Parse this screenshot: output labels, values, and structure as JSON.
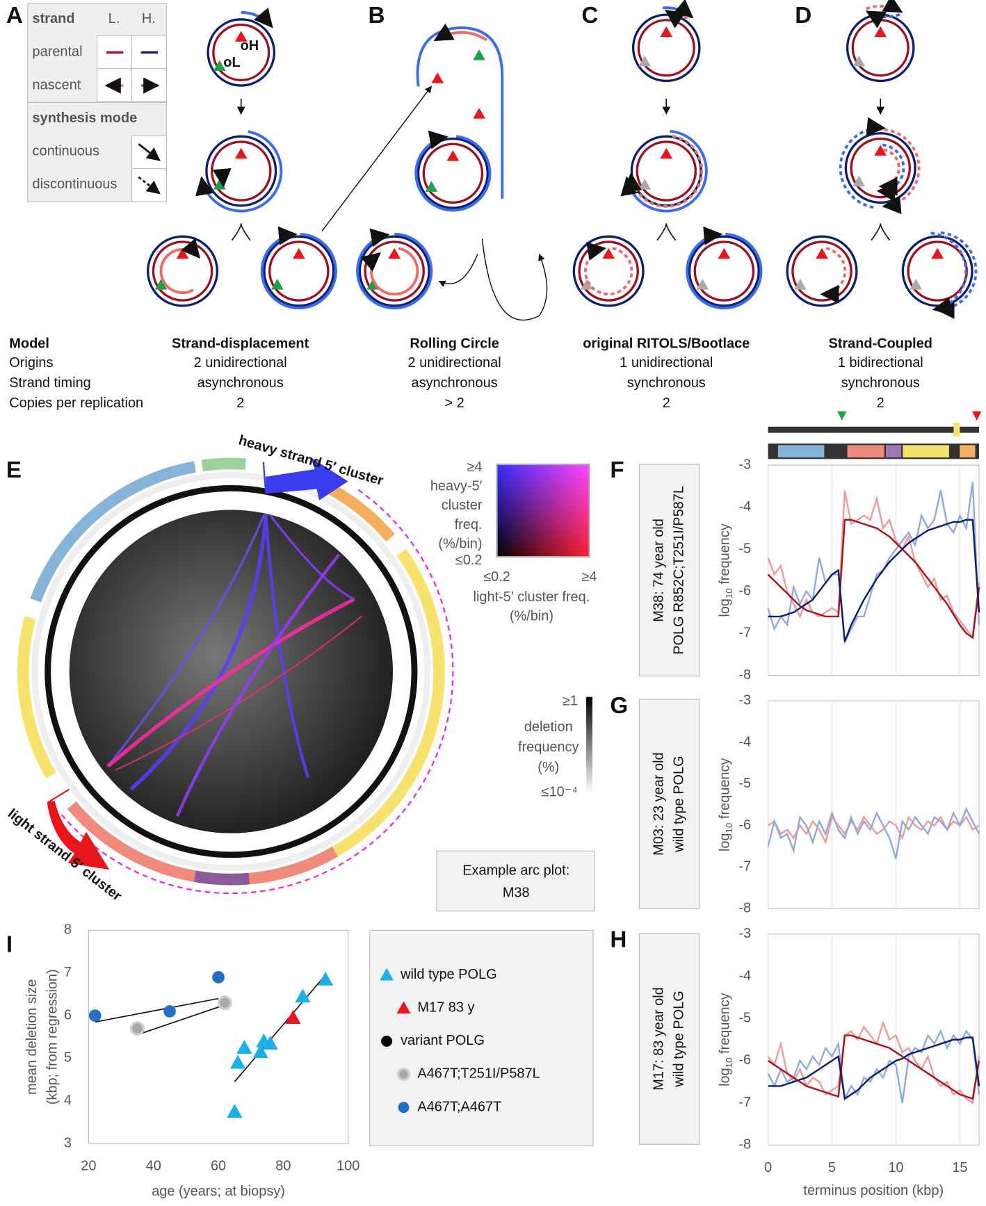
{
  "panel_labels": [
    "A",
    "B",
    "C",
    "D",
    "E",
    "F",
    "G",
    "H",
    "I"
  ],
  "legend_a": {
    "strand_header": "strand",
    "columns": [
      "L.",
      "H."
    ],
    "rows": [
      "parental",
      "nascent"
    ],
    "mode_header": "synthesis mode",
    "modes": [
      "continuous",
      "discontinuous"
    ]
  },
  "origin_labels": [
    "oH",
    "oL"
  ],
  "model_table": {
    "row_headers": [
      "Model",
      "Origins",
      "Strand timing",
      "Copies per replication"
    ],
    "models": [
      {
        "name": "Strand-displacement",
        "origins": "2 unidirectional",
        "timing": "asynchronous",
        "copies": "2"
      },
      {
        "name": "Rolling Circle",
        "origins": "2 unidirectional",
        "timing": "asynchronous",
        "copies": "> 2"
      },
      {
        "name": "original RITOLS/Bootlace",
        "origins": "1 unidirectional",
        "timing": "synchronous",
        "copies": "2"
      },
      {
        "name": "Strand-Coupled",
        "origins": "1 bidirectional",
        "timing": "synchronous",
        "copies": "2"
      }
    ]
  },
  "arc_plot": {
    "cluster_labels": [
      "heavy strand 5′ cluster",
      "light strand 5′ cluster"
    ],
    "color_key": {
      "y_max": "≥4",
      "y_label": [
        "heavy-5′",
        "cluster",
        "freq.",
        "(%/bin)"
      ],
      "y_min": "≤0.2",
      "x_min": "≤0.2",
      "x_max": "≥4",
      "x_label": [
        "light-5′ cluster freq.",
        "(%/bin)"
      ]
    },
    "deletion_key": {
      "max": "≥1",
      "label": [
        "deletion",
        "frequency",
        "(%)"
      ],
      "min": "≤10⁻⁴"
    },
    "example_note": [
      "Example arc plot:",
      "M38"
    ]
  },
  "chart_data": [
    {
      "type": "line",
      "title": [
        "M38: 74 year old",
        "POLG R852C;T251I/P587L"
      ],
      "y_label": {
        "main": "log",
        "sub": "10",
        "rest": "frequency"
      },
      "x": [
        0,
        0.5,
        1,
        1.5,
        2,
        2.5,
        3,
        3.5,
        4,
        4.5,
        5,
        5.5,
        6,
        6.5,
        7,
        7.5,
        8,
        8.5,
        9,
        9.5,
        10,
        10.5,
        11,
        11.5,
        12,
        12.5,
        13,
        13.5,
        14,
        14.5,
        15,
        15.5,
        16,
        16.5
      ],
      "xlim": [
        0,
        16.5
      ],
      "xticks": [
        0,
        5,
        10,
        15
      ],
      "show_xtick_labels": false,
      "ylim": [
        -8,
        -3
      ],
      "yticks": [
        -3,
        -4,
        -5,
        -6,
        -7,
        -8
      ],
      "series": [
        {
          "color": "#f29a9a",
          "values": [
            -5.2,
            -5.6,
            -5.4,
            -6.0,
            -6.3,
            -6.6,
            -6.2,
            -6.5,
            -6.6,
            -6.5,
            -6.4,
            -6.5,
            -3.6,
            -4.4,
            -4.3,
            -4.2,
            -4.3,
            -3.8,
            -4.5,
            -4.3,
            -4.8,
            -5.0,
            -4.7,
            -5.3,
            -5.6,
            -5.9,
            -5.7,
            -6.2,
            -6.1,
            -6.5,
            -6.7,
            -6.9,
            -7.1,
            -5.8
          ]
        },
        {
          "color": "#8fabdd",
          "values": [
            -6.4,
            -6.9,
            -6.6,
            -6.8,
            -5.9,
            -6.3,
            -6.0,
            -6.2,
            -5.2,
            -5.8,
            -5.6,
            -5.6,
            -7.2,
            -6.9,
            -6.6,
            -6.6,
            -6.1,
            -5.6,
            -5.5,
            -5.2,
            -5.0,
            -4.8,
            -4.6,
            -4.9,
            -4.2,
            -4.5,
            -4.3,
            -3.6,
            -4.4,
            -4.6,
            -4.2,
            -4.5,
            -3.4,
            -6.8
          ]
        },
        {
          "color": "#b0101e",
          "values": [
            -5.6,
            -5.75,
            -5.9,
            -6.05,
            -6.2,
            -6.35,
            -6.45,
            -6.5,
            -6.55,
            -6.6,
            -6.6,
            -6.6,
            -4.3,
            -4.3,
            -4.35,
            -4.4,
            -4.45,
            -4.5,
            -4.6,
            -4.7,
            -4.85,
            -5.0,
            -5.15,
            -5.3,
            -5.5,
            -5.7,
            -5.9,
            -6.1,
            -6.3,
            -6.55,
            -6.8,
            -7.0,
            -7.1,
            -5.9
          ]
        },
        {
          "color": "#0d1e6e",
          "values": [
            -6.6,
            -6.6,
            -6.6,
            -6.55,
            -6.5,
            -6.4,
            -6.3,
            -6.2,
            -6.0,
            -5.8,
            -5.6,
            -5.5,
            -7.2,
            -6.8,
            -6.5,
            -6.2,
            -5.95,
            -5.7,
            -5.5,
            -5.3,
            -5.15,
            -5.0,
            -4.85,
            -4.75,
            -4.65,
            -4.55,
            -4.5,
            -4.45,
            -4.4,
            -4.35,
            -4.35,
            -4.3,
            -4.3,
            -6.5
          ]
        }
      ]
    },
    {
      "type": "line",
      "title": [
        "M03: 23 year old",
        "wild type POLG"
      ],
      "y_label": {
        "main": "log",
        "sub": "10",
        "rest": "frequency"
      },
      "x": [
        0,
        0.5,
        1,
        1.5,
        2,
        2.5,
        3,
        3.5,
        4,
        4.5,
        5,
        5.5,
        6,
        6.5,
        7,
        7.5,
        8,
        8.5,
        9,
        9.5,
        10,
        10.5,
        11,
        11.5,
        12,
        12.5,
        13,
        13.5,
        14,
        14.5,
        15,
        15.5,
        16,
        16.5
      ],
      "xlim": [
        0,
        16.5
      ],
      "xticks": [
        0,
        5,
        10,
        15
      ],
      "show_xtick_labels": false,
      "ylim": [
        -8,
        -3
      ],
      "yticks": [
        -3,
        -4,
        -5,
        -6,
        -7,
        -8
      ],
      "series": [
        {
          "color": "#f29a9a",
          "values": [
            -6.0,
            -5.9,
            -6.2,
            -6.1,
            -6.3,
            -6.0,
            -6.2,
            -5.9,
            -6.1,
            -6.4,
            -5.8,
            -6.0,
            -6.2,
            -5.9,
            -6.1,
            -5.8,
            -6.0,
            -6.2,
            -6.1,
            -5.9,
            -6.0,
            -6.3,
            -5.8,
            -6.0,
            -6.1,
            -5.9,
            -6.0,
            -5.8,
            -6.1,
            -5.9,
            -6.0,
            -5.8,
            -6.1,
            -6.0
          ]
        },
        {
          "color": "#8fabdd",
          "values": [
            -6.5,
            -5.9,
            -6.3,
            -6.2,
            -6.6,
            -5.8,
            -6.0,
            -6.4,
            -5.9,
            -6.2,
            -5.7,
            -6.1,
            -6.3,
            -5.8,
            -6.2,
            -5.9,
            -6.1,
            -5.7,
            -6.0,
            -6.3,
            -6.8,
            -5.9,
            -6.1,
            -5.8,
            -6.0,
            -6.2,
            -5.8,
            -5.9,
            -6.1,
            -5.7,
            -6.0,
            -5.6,
            -5.9,
            -6.2
          ]
        }
      ]
    },
    {
      "type": "line",
      "title": [
        "M17: 83 year old",
        "wild type POLG"
      ],
      "y_label": {
        "main": "log",
        "sub": "10",
        "rest": "frequency"
      },
      "x_label": "terminus position (kbp)",
      "x": [
        0,
        0.5,
        1,
        1.5,
        2,
        2.5,
        3,
        3.5,
        4,
        4.5,
        5,
        5.5,
        6,
        6.5,
        7,
        7.5,
        8,
        8.5,
        9,
        9.5,
        10,
        10.5,
        11,
        11.5,
        12,
        12.5,
        13,
        13.5,
        14,
        14.5,
        15,
        15.5,
        16,
        16.5
      ],
      "xlim": [
        0,
        16.5
      ],
      "xticks": [
        0,
        5,
        10,
        15
      ],
      "show_xtick_labels": true,
      "ylim": [
        -8,
        -3
      ],
      "yticks": [
        -3,
        -4,
        -5,
        -6,
        -7,
        -8
      ],
      "series": [
        {
          "color": "#f29a9a",
          "values": [
            -5.9,
            -6.1,
            -5.6,
            -6.3,
            -6.5,
            -6.2,
            -6.6,
            -6.4,
            -6.5,
            -6.8,
            -6.7,
            -6.6,
            -5.4,
            -5.3,
            -5.5,
            -5.2,
            -5.4,
            -5.6,
            -5.1,
            -5.5,
            -5.4,
            -5.8,
            -5.7,
            -6.0,
            -6.2,
            -5.9,
            -6.4,
            -6.6,
            -6.5,
            -6.8,
            -6.7,
            -6.9,
            -7.0,
            -5.9
          ]
        },
        {
          "color": "#8fabdd",
          "values": [
            -6.3,
            -6.6,
            -6.2,
            -6.5,
            -6.4,
            -6.0,
            -6.2,
            -5.9,
            -6.1,
            -5.7,
            -5.9,
            -5.6,
            -6.9,
            -6.6,
            -6.8,
            -6.4,
            -6.5,
            -6.2,
            -6.4,
            -6.0,
            -6.1,
            -7.0,
            -5.9,
            -5.7,
            -5.8,
            -5.4,
            -5.6,
            -5.3,
            -5.7,
            -5.4,
            -5.6,
            -5.3,
            -5.5,
            -6.8
          ]
        },
        {
          "color": "#b0101e",
          "values": [
            -6.0,
            -6.1,
            -6.2,
            -6.3,
            -6.4,
            -6.5,
            -6.6,
            -6.65,
            -6.7,
            -6.75,
            -6.8,
            -6.85,
            -5.4,
            -5.4,
            -5.45,
            -5.5,
            -5.55,
            -5.6,
            -5.65,
            -5.7,
            -5.8,
            -5.9,
            -6.0,
            -6.1,
            -6.2,
            -6.3,
            -6.4,
            -6.5,
            -6.6,
            -6.7,
            -6.8,
            -6.85,
            -6.9,
            -6.0
          ]
        },
        {
          "color": "#0d1e6e",
          "values": [
            -6.6,
            -6.6,
            -6.6,
            -6.55,
            -6.5,
            -6.45,
            -6.4,
            -6.3,
            -6.2,
            -6.1,
            -6.0,
            -5.9,
            -6.9,
            -6.8,
            -6.7,
            -6.55,
            -6.4,
            -6.3,
            -6.2,
            -6.1,
            -6.0,
            -5.95,
            -5.85,
            -5.8,
            -5.75,
            -5.7,
            -5.65,
            -5.6,
            -5.55,
            -5.5,
            -5.5,
            -5.45,
            -5.45,
            -6.6
          ]
        }
      ]
    },
    {
      "type": "scatter",
      "x_label": "age (years; at biopsy)",
      "y_label": [
        "mean deletion size",
        "(kbp; from regression)"
      ],
      "xlim": [
        20,
        100
      ],
      "xticks": [
        20,
        40,
        60,
        80,
        100
      ],
      "ylim": [
        3,
        8
      ],
      "yticks": [
        3,
        4,
        5,
        6,
        7,
        8
      ],
      "series": [
        {
          "name": "wild type POLG",
          "color": "#1ab0e8",
          "marker": "triangle",
          "x": [
            65,
            66,
            68,
            73,
            74,
            76,
            86,
            93
          ],
          "values": [
            3.75,
            4.9,
            5.25,
            5.15,
            5.4,
            5.35,
            6.45,
            6.85
          ],
          "fit_x": [
            65,
            93
          ],
          "fit_y": [
            4.45,
            6.95
          ]
        },
        {
          "name": "M17  83 y",
          "color": "#e8161b",
          "marker": "triangle",
          "x": [
            83
          ],
          "values": [
            5.95
          ]
        },
        {
          "name": "variant POLG",
          "color": "#000000",
          "marker": "circle",
          "x": [],
          "values": []
        },
        {
          "name": "A467T;T251I/P587L",
          "color": "#a8a8a8",
          "marker": "circle",
          "x": [
            35,
            62
          ],
          "values": [
            5.7,
            6.3
          ],
          "fit_x": [
            35,
            62
          ],
          "fit_y": [
            5.55,
            6.25
          ]
        },
        {
          "name": "A467T;A467T",
          "color": "#2470c4",
          "marker": "circle",
          "x": [
            22,
            45,
            60
          ],
          "values": [
            6.0,
            6.1,
            6.9
          ],
          "fit_x": [
            22,
            60
          ],
          "fit_y": [
            5.85,
            6.4
          ]
        }
      ]
    }
  ]
}
